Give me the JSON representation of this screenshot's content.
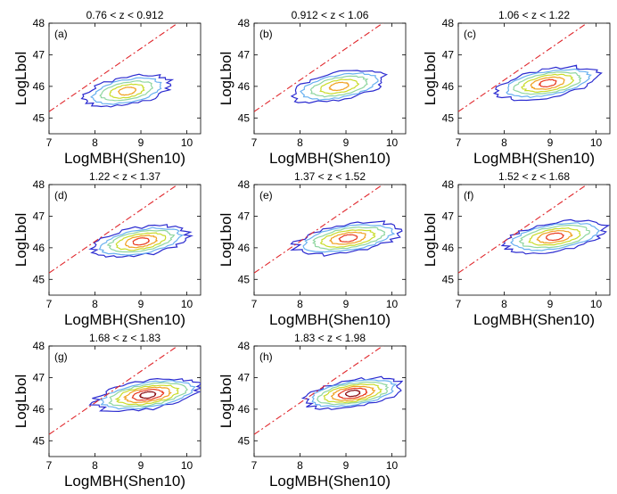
{
  "chart_data": {
    "type": "contour",
    "xlabel": "LogMBH(Shen10)",
    "ylabel": "LogLbol",
    "xlim": [
      7,
      10.3
    ],
    "ylim": [
      44.5,
      48
    ],
    "xticks": [
      7,
      8,
      9,
      10
    ],
    "yticks": [
      45,
      46,
      47,
      48
    ],
    "eddington_line": {
      "style": "dash-dot",
      "color": "#e0262b",
      "x": [
        7,
        10.3
      ],
      "y": [
        45.2,
        48.5
      ]
    },
    "contour_colors": [
      "#2b2bd0",
      "#68b0f0",
      "#8fd6a0",
      "#c9dc2a",
      "#f0a020",
      "#e83b20",
      "#8b0d12"
    ],
    "panels": [
      {
        "label": "(a)",
        "title": "0.76 < z < 0.912",
        "center": [
          8.7,
          45.85
        ],
        "spread_x": 1.05,
        "spread_y": 0.95,
        "tilt": 0.55,
        "levels": 5
      },
      {
        "label": "(b)",
        "title": "0.912 < z < 1.06",
        "center": [
          8.85,
          46.0
        ],
        "spread_x": 1.15,
        "spread_y": 0.95,
        "tilt": 0.55,
        "levels": 5
      },
      {
        "label": "(c)",
        "title": "1.06 < z < 1.22",
        "center": [
          8.95,
          46.1
        ],
        "spread_x": 1.2,
        "spread_y": 0.95,
        "tilt": 0.5,
        "levels": 6
      },
      {
        "label": "(d)",
        "title": "1.22 < z < 1.37",
        "center": [
          9.0,
          46.2
        ],
        "spread_x": 1.15,
        "spread_y": 0.95,
        "tilt": 0.5,
        "levels": 6
      },
      {
        "label": "(e)",
        "title": "1.37 < z < 1.52",
        "center": [
          9.05,
          46.3
        ],
        "spread_x": 1.25,
        "spread_y": 0.95,
        "tilt": 0.45,
        "levels": 6
      },
      {
        "label": "(f)",
        "title": "1.52 < z < 1.68",
        "center": [
          9.1,
          46.35
        ],
        "spread_x": 1.2,
        "spread_y": 0.95,
        "tilt": 0.45,
        "levels": 6
      },
      {
        "label": "(g)",
        "title": "1.68 < z < 1.83",
        "center": [
          9.15,
          46.45
        ],
        "spread_x": 1.25,
        "spread_y": 0.95,
        "tilt": 0.45,
        "levels": 7
      },
      {
        "label": "(h)",
        "title": "1.83 < z < 1.98",
        "center": [
          9.15,
          46.5
        ],
        "spread_x": 1.15,
        "spread_y": 0.9,
        "tilt": 0.45,
        "levels": 7
      }
    ]
  }
}
